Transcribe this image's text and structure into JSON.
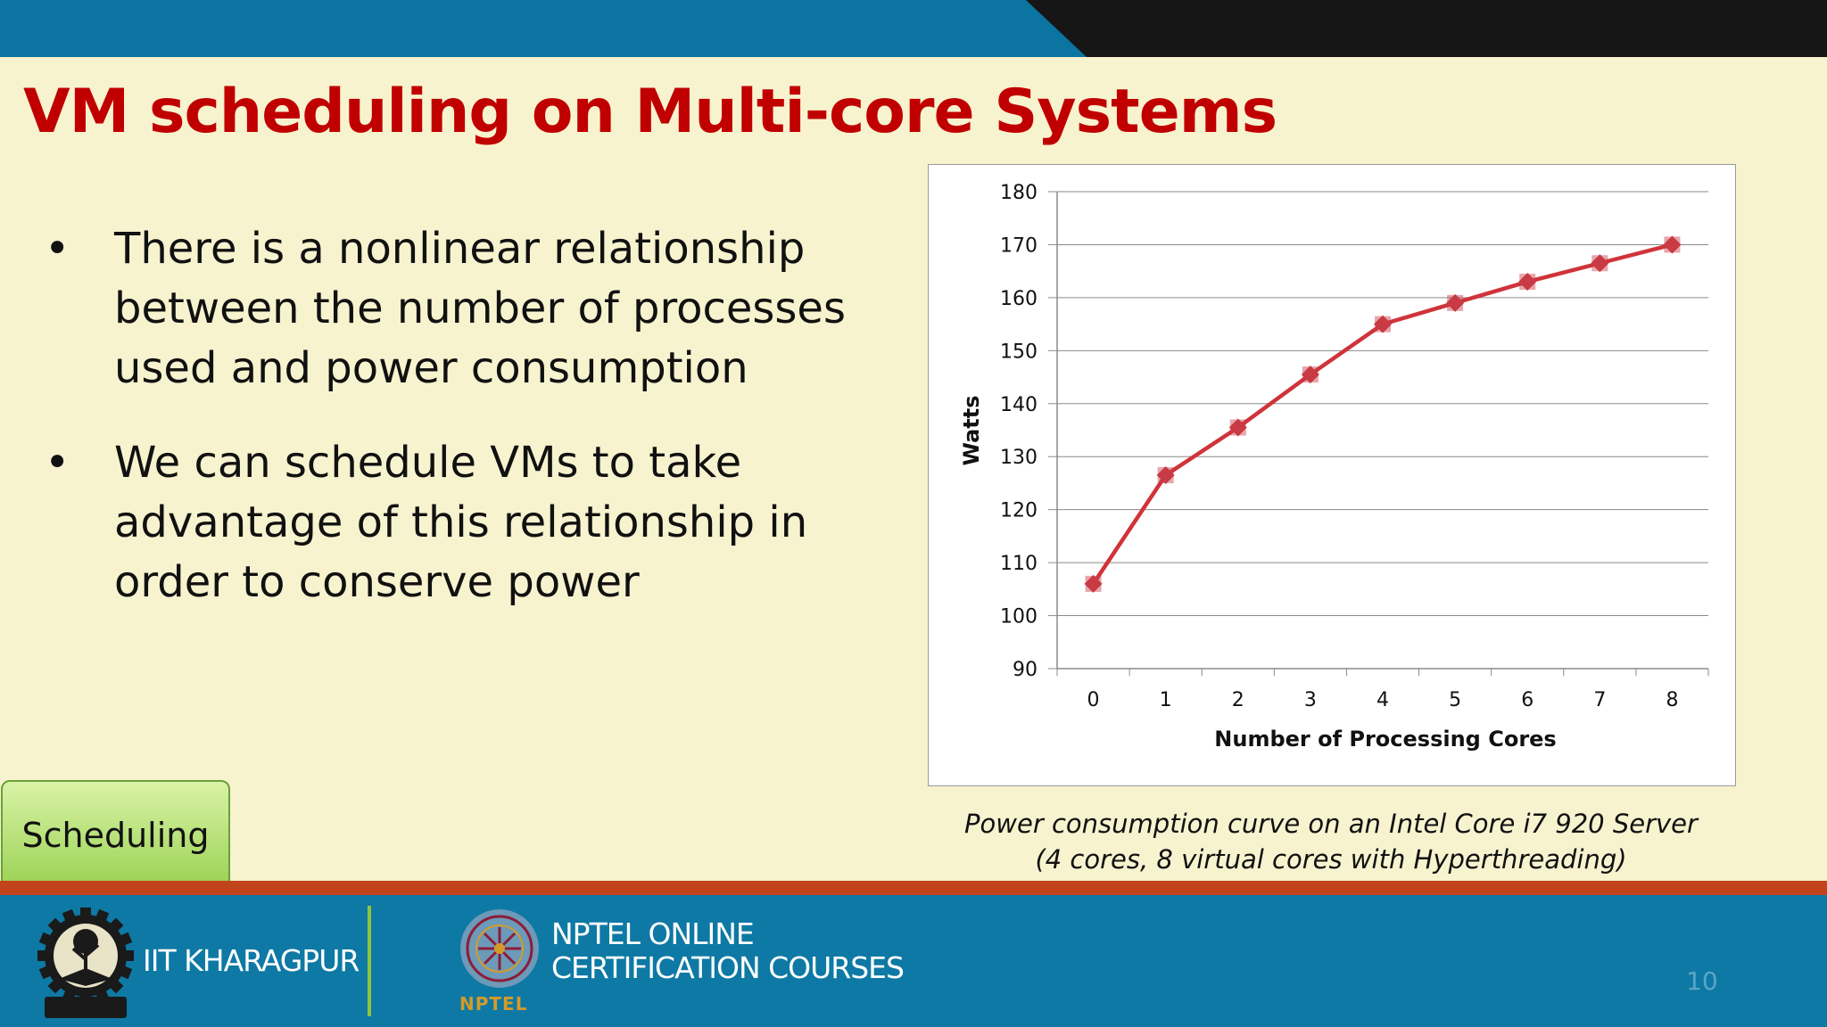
{
  "slide": {
    "title": "VM scheduling on Multi-core Systems",
    "bullets": [
      {
        "marker": "•",
        "text": "There is a nonlinear relationship between the number of processes used and power consumption"
      },
      {
        "marker": "•",
        "text": "We can schedule VMs to take advantage of this relationship in order to conserve power"
      }
    ],
    "caption_line1": "Power consumption curve on an Intel Core i7 920 Server",
    "caption_line2": "(4 cores, 8 virtual cores with Hyperthreading)",
    "section_button": "Scheduling",
    "page_number": "10"
  },
  "footer": {
    "institute": "IIT KHARAGPUR",
    "program_line1": "NPTEL ONLINE",
    "program_line2": "CERTIFICATION COURSES",
    "program_tag": "NPTEL"
  },
  "colors": {
    "title": "#c00000",
    "background": "#f8f3cf",
    "line": "#d0333a",
    "marker": "#c83a44",
    "footer_blue": "#0e79a4",
    "footer_red": "#c1441d",
    "top_blue": "#0b74a0",
    "top_dark": "#161616"
  },
  "chart_data": {
    "type": "line",
    "x": [
      0,
      1,
      2,
      3,
      4,
      5,
      6,
      7,
      8
    ],
    "series": [
      {
        "values": [
          106,
          126.5,
          135.5,
          145.5,
          155,
          159,
          163,
          166.5,
          170
        ]
      }
    ],
    "xlabel": "Number of Processing Cores",
    "ylabel": "Watts",
    "ylim": [
      90,
      180
    ],
    "yticks": [
      90,
      100,
      110,
      120,
      130,
      140,
      150,
      160,
      170,
      180
    ],
    "xticks": [
      0,
      1,
      2,
      3,
      4,
      5,
      6,
      7,
      8
    ],
    "grid": true,
    "marker": "diamond",
    "legend": "none"
  }
}
